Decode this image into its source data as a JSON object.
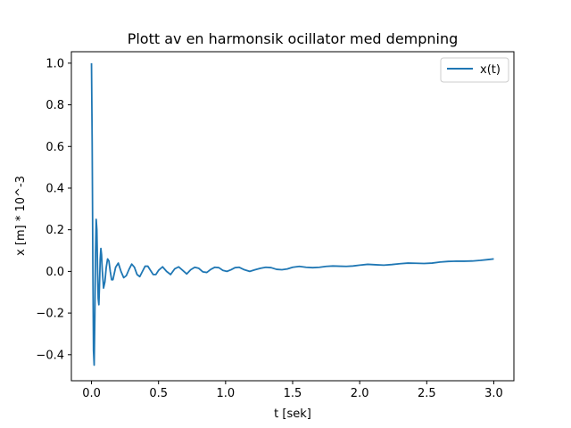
{
  "chart_data": {
    "type": "line",
    "title": "Plott av en harmonsik ocillator med dempning",
    "xlabel": "t [sek]",
    "ylabel": "x [m] * 10^-3",
    "xlim": [
      -0.15,
      3.15
    ],
    "ylim": [
      -0.525,
      1.055
    ],
    "xticks": [
      0.0,
      0.5,
      1.0,
      1.5,
      2.0,
      2.5,
      3.0
    ],
    "xtick_labels": [
      "0.0",
      "0.5",
      "1.0",
      "1.5",
      "2.0",
      "2.5",
      "3.0"
    ],
    "yticks": [
      -0.4,
      -0.2,
      0.0,
      0.2,
      0.4,
      0.6,
      0.8,
      1.0
    ],
    "ytick_labels": [
      "−0.4",
      "−0.2",
      "0.0",
      "0.2",
      "0.4",
      "0.6",
      "0.8",
      "1.0"
    ],
    "grid": false,
    "legend_position": "top-right",
    "series": [
      {
        "name": "x(t)",
        "color": "#1f77b4",
        "x": [
          0.0,
          0.005,
          0.01,
          0.015,
          0.02,
          0.025,
          0.03,
          0.035,
          0.04,
          0.045,
          0.05,
          0.055,
          0.06,
          0.065,
          0.07,
          0.075,
          0.08,
          0.09,
          0.1,
          0.11,
          0.12,
          0.13,
          0.14,
          0.15,
          0.16,
          0.17,
          0.18,
          0.2,
          0.22,
          0.24,
          0.26,
          0.28,
          0.3,
          0.32,
          0.34,
          0.36,
          0.38,
          0.4,
          0.42,
          0.44,
          0.46,
          0.48,
          0.5,
          0.53,
          0.56,
          0.59,
          0.62,
          0.65,
          0.68,
          0.71,
          0.74,
          0.77,
          0.8,
          0.83,
          0.86,
          0.89,
          0.92,
          0.95,
          0.98,
          1.01,
          1.04,
          1.07,
          1.1,
          1.14,
          1.18,
          1.22,
          1.26,
          1.3,
          1.34,
          1.38,
          1.42,
          1.46,
          1.5,
          1.55,
          1.6,
          1.65,
          1.7,
          1.75,
          1.8,
          1.85,
          1.9,
          1.95,
          2.0,
          2.06,
          2.12,
          2.18,
          2.24,
          2.3,
          2.36,
          2.42,
          2.48,
          2.54,
          2.6,
          2.66,
          2.72,
          2.78,
          2.84,
          2.9,
          2.96,
          3.0
        ],
        "y": [
          1.0,
          0.62,
          0.05,
          -0.38,
          -0.45,
          -0.22,
          0.08,
          0.25,
          0.2,
          0.02,
          -0.13,
          -0.16,
          -0.06,
          0.06,
          0.11,
          0.08,
          0.01,
          -0.08,
          -0.05,
          0.02,
          0.06,
          0.05,
          0.0,
          -0.04,
          -0.04,
          -0.01,
          0.02,
          0.04,
          0.0,
          -0.03,
          -0.02,
          0.01,
          0.035,
          0.02,
          -0.015,
          -0.025,
          0.0,
          0.025,
          0.025,
          0.005,
          -0.015,
          -0.015,
          0.005,
          0.022,
          0.0,
          -0.015,
          0.012,
          0.022,
          0.005,
          -0.012,
          0.008,
          0.02,
          0.015,
          -0.002,
          -0.005,
          0.01,
          0.02,
          0.018,
          0.005,
          0.0,
          0.008,
          0.018,
          0.02,
          0.008,
          0.0,
          0.008,
          0.015,
          0.02,
          0.018,
          0.01,
          0.008,
          0.012,
          0.02,
          0.024,
          0.02,
          0.018,
          0.02,
          0.024,
          0.026,
          0.025,
          0.024,
          0.026,
          0.03,
          0.034,
          0.032,
          0.03,
          0.033,
          0.037,
          0.04,
          0.039,
          0.038,
          0.04,
          0.045,
          0.048,
          0.049,
          0.049,
          0.05,
          0.053,
          0.057,
          0.06
        ]
      }
    ]
  }
}
